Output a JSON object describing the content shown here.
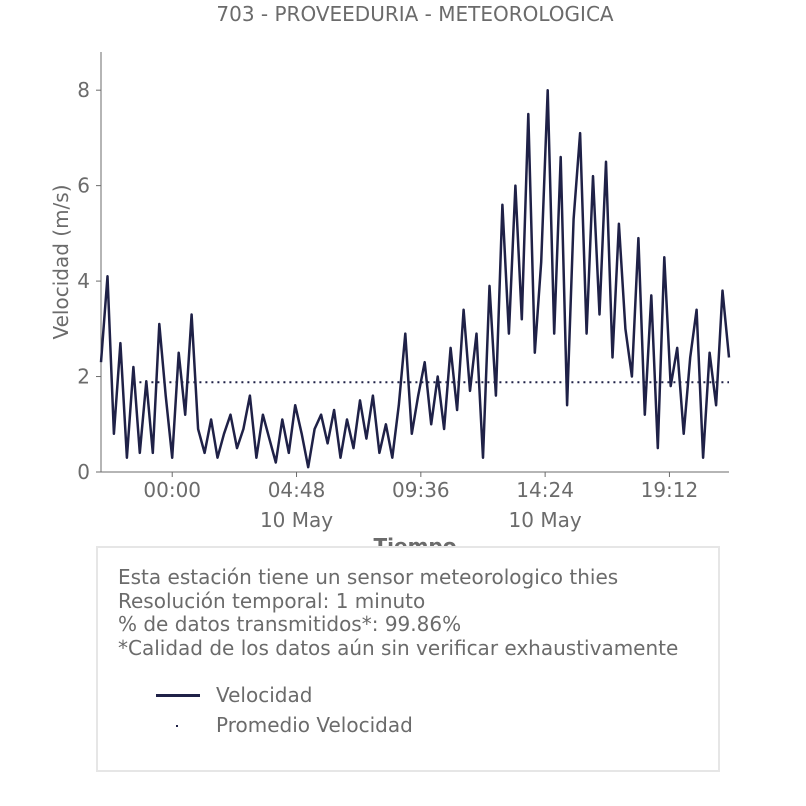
{
  "chart_data": {
    "type": "line",
    "title": "703 - PROVEEDURIA - METEOROLOGICA",
    "xlabel": "Tiempo",
    "ylabel": "Velocidad (m/s)",
    "ylim": [
      0,
      8.8
    ],
    "yticks": [
      "0",
      "2",
      "4",
      "6",
      "8"
    ],
    "xticks": [
      {
        "time": "00:00",
        "date": ""
      },
      {
        "time": "04:48",
        "date": "10 May"
      },
      {
        "time": "09:36",
        "date": ""
      },
      {
        "time": "14:24",
        "date": "10 May"
      },
      {
        "time": "19:12",
        "date": ""
      }
    ],
    "x_unit": "hours relative to 00:00, 10 May",
    "xlim": [
      -2.75,
      21.5
    ],
    "series": [
      {
        "name": "Velocidad",
        "color": "#1f2147",
        "style": "solid",
        "x": [
          -2.75,
          -2.5,
          -2.25,
          -2.0,
          -1.75,
          -1.5,
          -1.25,
          -1.0,
          -0.75,
          -0.5,
          -0.25,
          0.0,
          0.25,
          0.5,
          0.75,
          1.0,
          1.25,
          1.5,
          1.75,
          2.0,
          2.25,
          2.5,
          2.75,
          3.0,
          3.25,
          3.5,
          3.75,
          4.0,
          4.25,
          4.5,
          4.75,
          5.0,
          5.25,
          5.5,
          5.75,
          6.0,
          6.25,
          6.5,
          6.75,
          7.0,
          7.25,
          7.5,
          7.75,
          8.0,
          8.25,
          8.5,
          8.75,
          9.0,
          9.25,
          9.5,
          9.75,
          10.0,
          10.25,
          10.5,
          10.75,
          11.0,
          11.25,
          11.5,
          11.75,
          12.0,
          12.25,
          12.5,
          12.75,
          13.0,
          13.25,
          13.5,
          13.75,
          14.0,
          14.25,
          14.5,
          14.75,
          15.0,
          15.25,
          15.5,
          15.75,
          16.0,
          16.25,
          16.5,
          16.75,
          17.0,
          17.25,
          17.5,
          17.75,
          18.0,
          18.25,
          18.5,
          18.75,
          19.0,
          19.25,
          19.5,
          19.75,
          20.0,
          20.25,
          20.5,
          20.75,
          21.0,
          21.25,
          21.5
        ],
        "values": [
          2.3,
          4.1,
          0.8,
          2.7,
          0.3,
          2.2,
          0.4,
          1.9,
          0.4,
          3.1,
          1.6,
          0.3,
          2.5,
          1.2,
          3.3,
          0.9,
          0.4,
          1.1,
          0.3,
          0.8,
          1.2,
          0.5,
          0.9,
          1.6,
          0.3,
          1.2,
          0.7,
          0.2,
          1.1,
          0.4,
          1.4,
          0.8,
          0.1,
          0.9,
          1.2,
          0.6,
          1.3,
          0.3,
          1.1,
          0.5,
          1.5,
          0.7,
          1.6,
          0.4,
          1.0,
          0.3,
          1.4,
          2.9,
          0.8,
          1.6,
          2.3,
          1.0,
          2.0,
          0.9,
          2.6,
          1.3,
          3.4,
          1.7,
          2.9,
          0.3,
          3.9,
          1.6,
          5.6,
          2.9,
          6.0,
          3.2,
          7.5,
          2.5,
          4.4,
          8.0,
          2.9,
          6.6,
          1.4,
          5.3,
          7.1,
          2.9,
          6.2,
          3.3,
          6.5,
          2.4,
          5.2,
          3.0,
          2.0,
          4.9,
          1.2,
          3.7,
          0.5,
          4.5,
          1.8,
          2.6,
          0.8,
          2.4,
          3.4,
          0.3,
          2.5,
          1.4,
          3.8,
          2.4
        ]
      },
      {
        "name": "Promedio Velocidad",
        "color": "#1f2147",
        "style": "dotted",
        "x": [
          -1.5,
          21.5
        ],
        "values": [
          1.88,
          1.88
        ]
      }
    ],
    "legend": {
      "placement": "bottom",
      "entries": [
        "Velocidad",
        "Promedio Velocidad"
      ]
    },
    "grid": false
  },
  "info": {
    "lines": [
      "Esta estación tiene un sensor meteorologico thies",
      "Resolución temporal: 1 minuto",
      "% de datos transmitidos*: 99.86%",
      "*Calidad de los datos aún sin verificar exhaustivamente"
    ]
  }
}
